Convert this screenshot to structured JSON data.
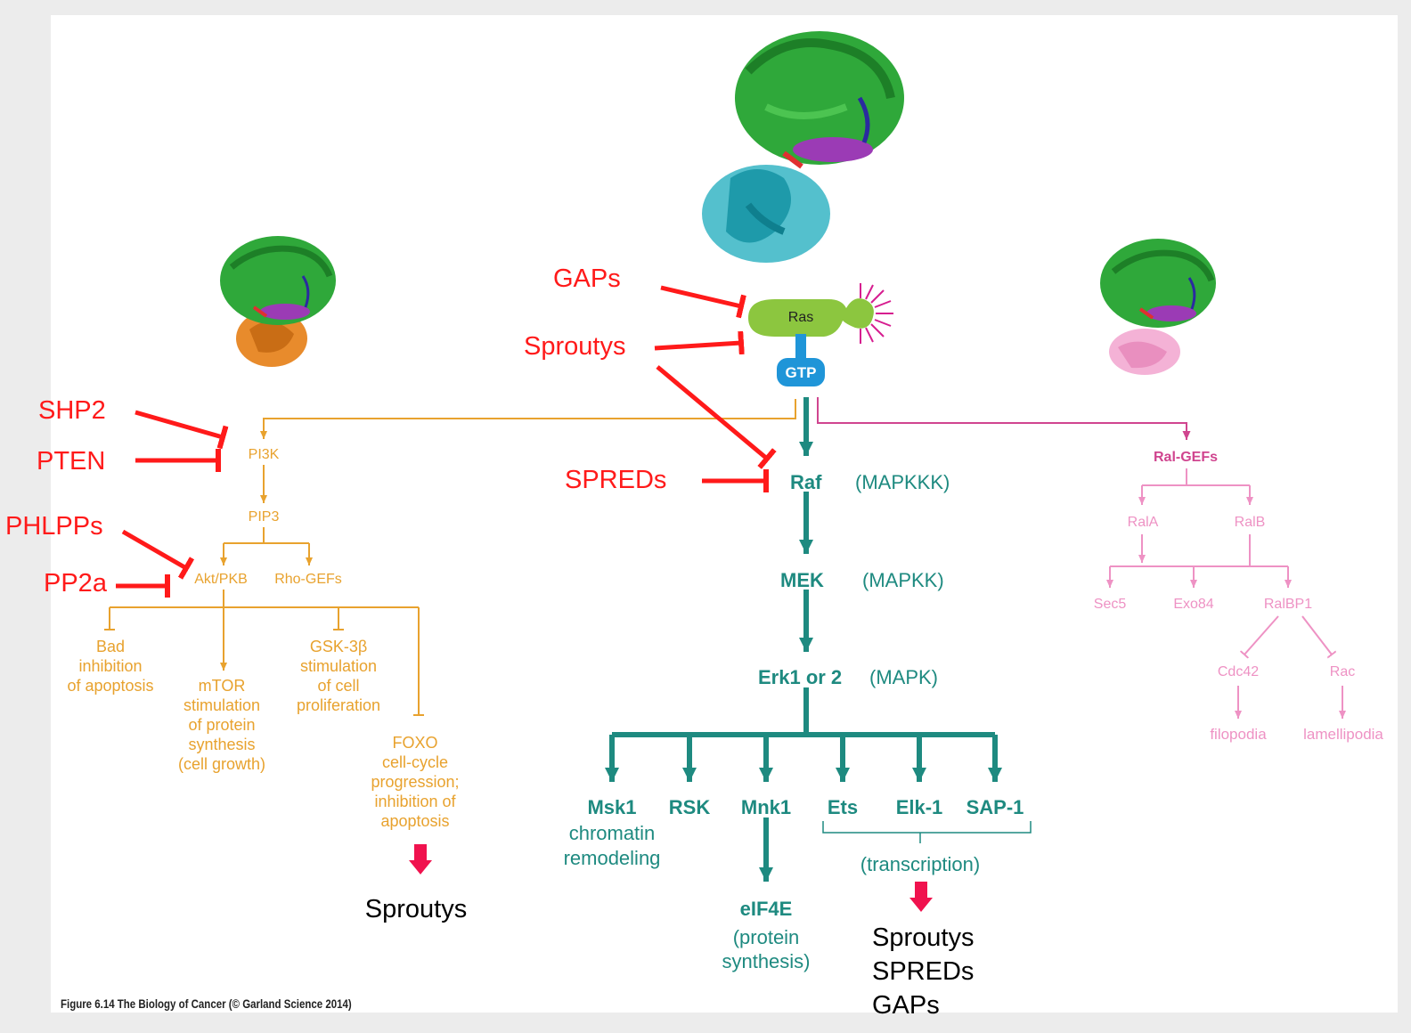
{
  "colors": {
    "background": "#ececec",
    "panel": "#ffffff",
    "pi3k_branch": "#e8a22e",
    "mapk_branch": "#1e8a80",
    "ral_branch": "#ee92c4",
    "ral_dark": "#d0458f",
    "inhibitor": "#ff1a1a",
    "ras_body": "#8cc63f",
    "gtp": "#1f95d8",
    "feedback_arrow": "#f0124e"
  },
  "ras": {
    "label": "Ras",
    "gtp_label": "GTP"
  },
  "pi3k_branch": {
    "pi3k": "PI3K",
    "pip3": "PIP3",
    "akt": "Akt/PKB",
    "rho_gefs": "Rho-GEFs",
    "bad": [
      "Bad",
      "inhibition",
      "of apoptosis"
    ],
    "mtor": [
      "mTOR",
      "stimulation",
      "of protein",
      "synthesis",
      "(cell growth)"
    ],
    "gsk": [
      "GSK-3β",
      "stimulation",
      "of cell",
      "proliferation"
    ],
    "foxo": [
      "FOXO",
      "cell-cycle",
      "progression;",
      "inhibition of",
      "apoptosis"
    ]
  },
  "mapk_branch": {
    "raf": "Raf",
    "raf_note": "(MAPKKK)",
    "mek": "MEK",
    "mek_note": "(MAPKK)",
    "erk": "Erk1 or 2",
    "erk_note": "(MAPK)",
    "msk1": "Msk1",
    "msk1_note": [
      "chromatin",
      "remodeling"
    ],
    "rsk": "RSK",
    "mnk1": "Mnk1",
    "ets": "Ets",
    "elk1": "Elk-1",
    "sap1": "SAP-1",
    "transcription": "(transcription)",
    "eif4e": "eIF4E",
    "eif4e_note": [
      "(protein",
      "synthesis)"
    ]
  },
  "ral_branch": {
    "ral_gefs": "Ral-GEFs",
    "rala": "RalA",
    "ralb": "RalB",
    "sec5": "Sec5",
    "exo84": "Exo84",
    "ralbp1": "RalBP1",
    "cdc42": "Cdc42",
    "rac": "Rac",
    "filopodia": "filopodia",
    "lamellipodia": "lamellipodia"
  },
  "inhibitors": {
    "gaps": "GAPs",
    "sproutys": "Sproutys",
    "spreds": "SPREDs",
    "shp2": "SHP2",
    "pten": "PTEN",
    "phlpps": "PHLPPs",
    "pp2a": "PP2a"
  },
  "feedback": {
    "foxo_output": "Sproutys",
    "transcription_output": [
      "Sproutys",
      "SPREDs",
      "GAPs"
    ]
  },
  "caption": "Figure 6.14  The Biology of Cancer (© Garland Science 2014)",
  "structure_icons": [
    "ras-pi3k-complex-icon",
    "ras-raf-complex-icon",
    "ras-ralgds-complex-icon"
  ]
}
